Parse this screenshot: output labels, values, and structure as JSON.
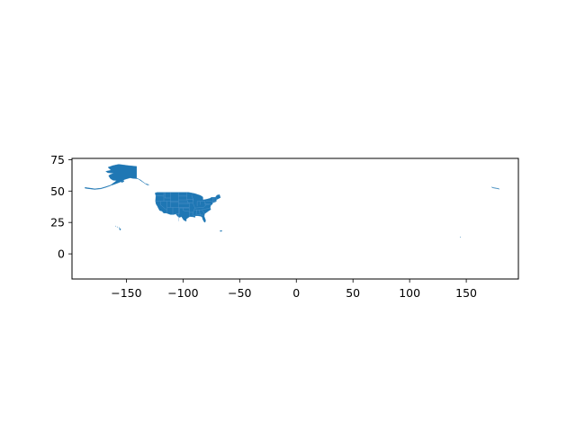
{
  "chart_data": {
    "type": "map",
    "title": "",
    "xlabel": "",
    "ylabel": "",
    "xlim": [
      -198,
      196
    ],
    "ylim": [
      -20,
      76
    ],
    "x_ticks": [
      -150,
      -100,
      -50,
      0,
      50,
      100,
      150
    ],
    "x_tick_labels": [
      "−150",
      "−100",
      "−50",
      "0",
      "50",
      "100",
      "150"
    ],
    "y_ticks": [
      0,
      25,
      50,
      75
    ],
    "y_tick_labels": [
      "0",
      "25",
      "50",
      "75"
    ],
    "grid": false,
    "fill_color": "#1f77b4",
    "state_border_color": "#5b9bd0",
    "regions": [
      {
        "name": "Contiguous United States",
        "lonlat": [
          [
            -124.7,
            48.4
          ],
          [
            -123.0,
            48.9
          ],
          [
            -95.2,
            49.0
          ],
          [
            -89.6,
            48.0
          ],
          [
            -84.6,
            46.5
          ],
          [
            -82.5,
            45.3
          ],
          [
            -82.4,
            43.0
          ],
          [
            -79.2,
            43.5
          ],
          [
            -76.3,
            44.2
          ],
          [
            -74.9,
            45.0
          ],
          [
            -71.5,
            45.0
          ],
          [
            -70.0,
            46.7
          ],
          [
            -67.8,
            47.1
          ],
          [
            -67.0,
            44.8
          ],
          [
            -70.6,
            43.1
          ],
          [
            -70.7,
            41.7
          ],
          [
            -73.9,
            40.6
          ],
          [
            -74.1,
            39.6
          ],
          [
            -75.6,
            38.6
          ],
          [
            -76.1,
            36.8
          ],
          [
            -75.5,
            35.3
          ],
          [
            -77.9,
            33.9
          ],
          [
            -81.0,
            31.9
          ],
          [
            -81.3,
            29.8
          ],
          [
            -80.0,
            26.7
          ],
          [
            -80.4,
            25.2
          ],
          [
            -81.2,
            25.3
          ],
          [
            -82.6,
            27.5
          ],
          [
            -83.0,
            29.1
          ],
          [
            -84.3,
            30.0
          ],
          [
            -87.3,
            30.4
          ],
          [
            -89.4,
            30.2
          ],
          [
            -89.3,
            29.1
          ],
          [
            -91.4,
            29.5
          ],
          [
            -94.0,
            29.7
          ],
          [
            -97.1,
            27.8
          ],
          [
            -97.2,
            25.9
          ],
          [
            -99.4,
            26.9
          ],
          [
            -101.4,
            29.7
          ],
          [
            -103.0,
            29.0
          ],
          [
            -104.6,
            29.8
          ],
          [
            -106.5,
            31.8
          ],
          [
            -108.2,
            31.3
          ],
          [
            -111.0,
            31.3
          ],
          [
            -114.8,
            32.5
          ],
          [
            -117.1,
            32.5
          ],
          [
            -118.6,
            34.0
          ],
          [
            -120.6,
            34.5
          ],
          [
            -121.9,
            36.6
          ],
          [
            -122.5,
            37.8
          ],
          [
            -123.8,
            39.7
          ],
          [
            -124.3,
            42.0
          ],
          [
            -124.0,
            46.2
          ],
          [
            -124.7,
            48.4
          ]
        ]
      },
      {
        "name": "Alaska mainland",
        "lonlat": [
          [
            -141.0,
            69.6
          ],
          [
            -141.0,
            60.3
          ],
          [
            -137.5,
            58.8
          ],
          [
            -133.5,
            56.0
          ],
          [
            -130.0,
            55.0
          ],
          [
            -131.5,
            54.9
          ],
          [
            -135.8,
            57.4
          ],
          [
            -139.8,
            59.8
          ],
          [
            -143.9,
            60.0
          ],
          [
            -146.7,
            60.5
          ],
          [
            -151.5,
            59.2
          ],
          [
            -154.4,
            57.6
          ],
          [
            -158.0,
            56.3
          ],
          [
            -161.8,
            55.0
          ],
          [
            -164.5,
            54.4
          ],
          [
            -160.5,
            57.0
          ],
          [
            -158.5,
            58.4
          ],
          [
            -161.8,
            58.6
          ],
          [
            -164.1,
            59.9
          ],
          [
            -165.7,
            62.2
          ],
          [
            -164.3,
            63.1
          ],
          [
            -161.0,
            64.2
          ],
          [
            -166.5,
            64.6
          ],
          [
            -168.1,
            65.7
          ],
          [
            -163.5,
            66.6
          ],
          [
            -166.2,
            68.9
          ],
          [
            -161.9,
            70.3
          ],
          [
            -156.8,
            71.3
          ],
          [
            -152.5,
            70.8
          ],
          [
            -148.2,
            70.3
          ],
          [
            -141.0,
            69.6
          ]
        ]
      },
      {
        "name": "Aleutian Islands",
        "lonlat": [
          [
            -164.0,
            54.7
          ],
          [
            -168.0,
            53.5
          ],
          [
            -172.5,
            52.3
          ],
          [
            -178.0,
            51.8
          ],
          [
            -186.6,
            52.9
          ],
          [
            -186.4,
            52.2
          ],
          [
            -178.0,
            51.3
          ],
          [
            -172.5,
            51.8
          ],
          [
            -168.0,
            53.0
          ],
          [
            -164.0,
            54.3
          ],
          [
            -164.0,
            54.7
          ]
        ]
      },
      {
        "name": "Kodiak Island",
        "lonlat": [
          [
            -152.4,
            58.3
          ],
          [
            -154.8,
            57.4
          ],
          [
            -153.9,
            56.9
          ],
          [
            -152.2,
            57.6
          ],
          [
            -152.4,
            58.3
          ]
        ]
      },
      {
        "name": "Hawaii",
        "lonlat": [
          [
            -155.9,
            20.3
          ],
          [
            -154.8,
            19.5
          ],
          [
            -155.7,
            18.9
          ],
          [
            -156.1,
            19.7
          ],
          [
            -155.9,
            20.3
          ]
        ]
      },
      {
        "name": "Maui",
        "lonlat": [
          [
            -156.7,
            21.0
          ],
          [
            -156.0,
            20.8
          ],
          [
            -156.4,
            20.6
          ],
          [
            -156.7,
            21.0
          ]
        ]
      },
      {
        "name": "Oahu",
        "lonlat": [
          [
            -158.3,
            21.6
          ],
          [
            -157.7,
            21.4
          ],
          [
            -158.1,
            21.3
          ],
          [
            -158.3,
            21.6
          ]
        ]
      },
      {
        "name": "Kauai",
        "lonlat": [
          [
            -159.8,
            22.2
          ],
          [
            -159.3,
            22.1
          ],
          [
            -159.6,
            21.9
          ],
          [
            -159.8,
            22.2
          ]
        ]
      },
      {
        "name": "Puerto Rico",
        "lonlat": [
          [
            -67.3,
            18.5
          ],
          [
            -65.6,
            18.4
          ],
          [
            -65.8,
            18.0
          ],
          [
            -67.2,
            17.9
          ],
          [
            -67.3,
            18.5
          ]
        ]
      },
      {
        "name": "Guam",
        "lonlat": [
          [
            144.7,
            13.6
          ],
          [
            145.0,
            13.6
          ],
          [
            144.8,
            13.2
          ],
          [
            144.7,
            13.6
          ]
        ]
      },
      {
        "name": "Western Aleutians (east of 180)",
        "lonlat": [
          [
            172.5,
            53.0
          ],
          [
            174.0,
            52.4
          ],
          [
            177.5,
            51.9
          ],
          [
            179.0,
            51.5
          ],
          [
            179.0,
            51.8
          ],
          [
            177.5,
            52.2
          ],
          [
            174.0,
            52.7
          ],
          [
            172.5,
            53.2
          ],
          [
            172.5,
            53.0
          ]
        ]
      }
    ],
    "state_borders": [
      [
        [
          -104.05,
          49.0
        ],
        [
          -104.05,
          26.0
        ]
      ],
      [
        [
          -111.05,
          49.0
        ],
        [
          -111.05,
          37.0
        ]
      ],
      [
        [
          -114.05,
          42.0
        ],
        [
          -114.05,
          32.5
        ]
      ],
      [
        [
          -120.0,
          42.0
        ],
        [
          -120.0,
          39.0
        ],
        [
          -114.6,
          35.0
        ]
      ],
      [
        [
          -117.0,
          49.0
        ],
        [
          -117.0,
          42.0
        ]
      ],
      [
        [
          -124.3,
          42.0
        ],
        [
          -104.05,
          42.0
        ]
      ],
      [
        [
          -124.0,
          46.2
        ],
        [
          -116.9,
          46.0
        ]
      ],
      [
        [
          -116.0,
          49.0
        ],
        [
          -116.0,
          44.5
        ],
        [
          -111.05,
          44.5
        ]
      ],
      [
        [
          -111.05,
          41.0
        ],
        [
          -95.3,
          41.0
        ]
      ],
      [
        [
          -114.05,
          37.0
        ],
        [
          -94.6,
          37.0
        ]
      ],
      [
        [
          -109.05,
          37.0
        ],
        [
          -109.05,
          31.3
        ]
      ],
      [
        [
          -104.05,
          45.95
        ],
        [
          -96.6,
          45.95
        ]
      ],
      [
        [
          -104.05,
          43.0
        ],
        [
          -96.5,
          43.0
        ]
      ],
      [
        [
          -104.05,
          40.0
        ],
        [
          -95.3,
          40.0
        ]
      ],
      [
        [
          -103.0,
          36.5
        ],
        [
          -94.6,
          36.5
        ]
      ],
      [
        [
          -103.0,
          36.5
        ],
        [
          -103.0,
          32.0
        ],
        [
          -106.6,
          32.0
        ]
      ],
      [
        [
          -100.0,
          36.5
        ],
        [
          -100.0,
          34.6
        ],
        [
          -94.0,
          33.6
        ]
      ],
      [
        [
          -96.6,
          49.0
        ],
        [
          -96.6,
          45.95
        ],
        [
          -96.5,
          43.0
        ],
        [
          -95.3,
          40.0
        ]
      ],
      [
        [
          -94.6,
          40.6
        ],
        [
          -94.6,
          33.0
        ],
        [
          -94.0,
          29.7
        ]
      ],
      [
        [
          -96.5,
          43.5
        ],
        [
          -91.2,
          43.5
        ]
      ],
      [
        [
          -95.8,
          40.6
        ],
        [
          -91.4,
          40.6
        ]
      ],
      [
        [
          -94.0,
          33.0
        ],
        [
          -91.1,
          33.0
        ]
      ],
      [
        [
          -92.3,
          47.0
        ],
        [
          -92.3,
          46.0
        ],
        [
          -90.7,
          42.5
        ]
      ],
      [
        [
          -91.2,
          43.5
        ],
        [
          -91.4,
          40.6
        ],
        [
          -89.5,
          36.5
        ],
        [
          -90.3,
          35.0
        ],
        [
          -91.1,
          33.0
        ],
        [
          -91.6,
          31.0
        ],
        [
          -89.6,
          30.2
        ]
      ],
      [
        [
          -89.6,
          35.0
        ],
        [
          -84.3,
          35.0
        ],
        [
          -75.7,
          36.55
        ]
      ],
      [
        [
          -88.1,
          35.0
        ],
        [
          -88.4,
          30.4
        ]
      ],
      [
        [
          -85.6,
          35.0
        ],
        [
          -85.0,
          31.0
        ],
        [
          -87.6,
          31.0
        ]
      ],
      [
        [
          -85.0,
          31.0
        ],
        [
          -81.5,
          30.7
        ]
      ],
      [
        [
          -83.1,
          35.0
        ],
        [
          -81.0,
          32.1
        ]
      ],
      [
        [
          -87.5,
          41.8
        ],
        [
          -87.5,
          38.0
        ]
      ],
      [
        [
          -84.8,
          41.7
        ],
        [
          -84.8,
          39.1
        ]
      ],
      [
        [
          -87.5,
          41.7
        ],
        [
          -80.5,
          42.0
        ]
      ],
      [
        [
          -89.5,
          36.5
        ],
        [
          -81.7,
          37.0
        ],
        [
          -80.3,
          38.5
        ],
        [
          -80.5,
          40.6
        ]
      ],
      [
        [
          -80.5,
          42.0
        ],
        [
          -80.5,
          39.7
        ],
        [
          -75.8,
          39.7
        ]
      ],
      [
        [
          -79.8,
          42.0
        ],
        [
          -75.3,
          42.0
        ],
        [
          -73.5,
          41.0
        ]
      ],
      [
        [
          -75.8,
          39.7
        ],
        [
          -75.8,
          38.5
        ],
        [
          -75.0,
          38.4
        ]
      ],
      [
        [
          -77.0,
          39.0
        ],
        [
          -78.3,
          39.4
        ],
        [
          -80.3,
          38.5
        ]
      ],
      [
        [
          -73.5,
          45.0
        ],
        [
          -73.5,
          41.0
        ]
      ],
      [
        [
          -71.8,
          42.0
        ],
        [
          -71.8,
          41.3
        ]
      ],
      [
        [
          -73.5,
          42.05
        ],
        [
          -70.7,
          42.0
        ]
      ],
      [
        [
          -72.5,
          45.0
        ],
        [
          -72.5,
          42.7
        ]
      ],
      [
        [
          -71.0,
          45.3
        ],
        [
          -70.7,
          43.1
        ]
      ]
    ]
  }
}
